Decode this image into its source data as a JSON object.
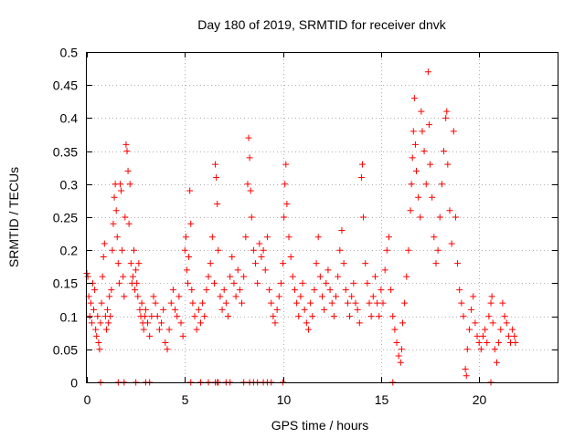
{
  "chart_data": {
    "type": "scatter",
    "title": "Day 180 of 2019, SRMTID for receiver dnvk",
    "xlabel": "GPS time / hours",
    "ylabel": "SRMTID / TECUs",
    "xlim": [
      0,
      24
    ],
    "ylim": [
      0,
      0.5
    ],
    "xticks": [
      0,
      5,
      10,
      15,
      20
    ],
    "yticks": [
      0,
      0.05,
      0.1,
      0.15,
      0.2,
      0.25,
      0.3,
      0.35,
      0.4,
      0.45,
      0.5
    ],
    "xtick_labels": [
      "0",
      "5",
      "10",
      "15",
      "20"
    ],
    "ytick_labels": [
      "0",
      "0.05",
      "0.1",
      "0.15",
      "0.2",
      "0.25",
      "0.3",
      "0.35",
      "0.4",
      "0.45",
      "0.5"
    ],
    "grid": true,
    "marker": "+",
    "color": "#ff0000",
    "series": [
      {
        "name": "SRMTID",
        "points": [
          [
            0.0,
            0.165
          ],
          [
            0.05,
            0.16
          ],
          [
            0.1,
            0.13
          ],
          [
            0.15,
            0.1
          ],
          [
            0.2,
            0.12
          ],
          [
            0.25,
            0.09
          ],
          [
            0.3,
            0.15
          ],
          [
            0.35,
            0.11
          ],
          [
            0.4,
            0.14
          ],
          [
            0.45,
            0.08
          ],
          [
            0.5,
            0.07
          ],
          [
            0.55,
            0.1
          ],
          [
            0.6,
            0.06
          ],
          [
            0.65,
            0.05
          ],
          [
            0.7,
            0.09
          ],
          [
            0.75,
            0.12
          ],
          [
            0.8,
            0.16
          ],
          [
            0.85,
            0.19
          ],
          [
            0.9,
            0.21
          ],
          [
            0.95,
            0.1
          ],
          [
            1.0,
            0.08
          ],
          [
            1.05,
            0.11
          ],
          [
            1.1,
            0.09
          ],
          [
            1.15,
            0.13
          ],
          [
            1.2,
            0.1
          ],
          [
            1.25,
            0.14
          ],
          [
            1.3,
            0.2
          ],
          [
            1.35,
            0.24
          ],
          [
            1.4,
            0.28
          ],
          [
            1.45,
            0.3
          ],
          [
            1.5,
            0.26
          ],
          [
            1.55,
            0.22
          ],
          [
            1.6,
            0.18
          ],
          [
            1.65,
            0.15
          ],
          [
            1.7,
            0.3
          ],
          [
            1.75,
            0.29
          ],
          [
            1.8,
            0.2
          ],
          [
            1.85,
            0.16
          ],
          [
            1.9,
            0.13
          ],
          [
            1.95,
            0.25
          ],
          [
            2.0,
            0.36
          ],
          [
            2.05,
            0.35
          ],
          [
            2.1,
            0.32
          ],
          [
            2.15,
            0.24
          ],
          [
            2.2,
            0.3
          ],
          [
            2.25,
            0.18
          ],
          [
            2.3,
            0.15
          ],
          [
            2.35,
            0.16
          ],
          [
            2.4,
            0.2
          ],
          [
            2.45,
            0.14
          ],
          [
            2.5,
            0.17
          ],
          [
            2.55,
            0.15
          ],
          [
            2.6,
            0.13
          ],
          [
            2.65,
            0.18
          ],
          [
            2.7,
            0.11
          ],
          [
            2.75,
            0.1
          ],
          [
            2.8,
            0.12
          ],
          [
            2.85,
            0.09
          ],
          [
            2.9,
            0.08
          ],
          [
            2.95,
            0.1
          ],
          [
            3.0,
            0.11
          ],
          [
            3.1,
            0.09
          ],
          [
            3.2,
            0.07
          ],
          [
            3.3,
            0.1
          ],
          [
            3.4,
            0.13
          ],
          [
            3.5,
            0.12
          ],
          [
            3.6,
            0.1
          ],
          [
            3.7,
            0.08
          ],
          [
            3.8,
            0.09
          ],
          [
            3.9,
            0.11
          ],
          [
            4.0,
            0.06
          ],
          [
            4.1,
            0.05
          ],
          [
            4.2,
            0.08
          ],
          [
            4.3,
            0.12
          ],
          [
            4.4,
            0.14
          ],
          [
            4.5,
            0.11
          ],
          [
            4.6,
            0.1
          ],
          [
            4.7,
            0.13
          ],
          [
            4.8,
            0.09
          ],
          [
            4.9,
            0.07
          ],
          [
            5.0,
            0.2
          ],
          [
            5.05,
            0.22
          ],
          [
            5.1,
            0.17
          ],
          [
            5.15,
            0.15
          ],
          [
            5.2,
            0.19
          ],
          [
            5.25,
            0.29
          ],
          [
            5.3,
            0.24
          ],
          [
            5.35,
            0.14
          ],
          [
            5.4,
            0.12
          ],
          [
            5.5,
            0.1
          ],
          [
            5.6,
            0.08
          ],
          [
            5.7,
            0.11
          ],
          [
            5.8,
            0.09
          ],
          [
            5.9,
            0.12
          ],
          [
            6.0,
            0.1
          ],
          [
            6.1,
            0.14
          ],
          [
            6.2,
            0.16
          ],
          [
            6.3,
            0.18
          ],
          [
            6.4,
            0.22
          ],
          [
            6.5,
            0.15
          ],
          [
            6.55,
            0.33
          ],
          [
            6.6,
            0.31
          ],
          [
            6.65,
            0.27
          ],
          [
            6.7,
            0.2
          ],
          [
            6.8,
            0.13
          ],
          [
            6.9,
            0.11
          ],
          [
            7.0,
            0.14
          ],
          [
            7.1,
            0.12
          ],
          [
            7.2,
            0.1
          ],
          [
            7.3,
            0.16
          ],
          [
            7.4,
            0.19
          ],
          [
            7.5,
            0.15
          ],
          [
            7.6,
            0.13
          ],
          [
            7.7,
            0.17
          ],
          [
            7.8,
            0.14
          ],
          [
            7.9,
            0.12
          ],
          [
            8.0,
            0.16
          ],
          [
            8.1,
            0.22
          ],
          [
            8.2,
            0.3
          ],
          [
            8.25,
            0.37
          ],
          [
            8.3,
            0.34
          ],
          [
            8.35,
            0.29
          ],
          [
            8.4,
            0.25
          ],
          [
            8.5,
            0.2
          ],
          [
            8.6,
            0.18
          ],
          [
            8.7,
            0.15
          ],
          [
            8.8,
            0.21
          ],
          [
            8.9,
            0.19
          ],
          [
            9.0,
            0.2
          ],
          [
            9.1,
            0.17
          ],
          [
            9.2,
            0.22
          ],
          [
            9.3,
            0.14
          ],
          [
            9.4,
            0.12
          ],
          [
            9.5,
            0.1
          ],
          [
            9.6,
            0.09
          ],
          [
            9.7,
            0.11
          ],
          [
            9.8,
            0.13
          ],
          [
            9.9,
            0.15
          ],
          [
            10.0,
            0.18
          ],
          [
            10.05,
            0.25
          ],
          [
            10.1,
            0.3
          ],
          [
            10.15,
            0.33
          ],
          [
            10.2,
            0.27
          ],
          [
            10.3,
            0.22
          ],
          [
            10.4,
            0.19
          ],
          [
            10.5,
            0.16
          ],
          [
            10.6,
            0.14
          ],
          [
            10.7,
            0.12
          ],
          [
            10.8,
            0.1
          ],
          [
            10.9,
            0.13
          ],
          [
            11.0,
            0.15
          ],
          [
            11.1,
            0.11
          ],
          [
            11.2,
            0.09
          ],
          [
            11.3,
            0.08
          ],
          [
            11.4,
            0.12
          ],
          [
            11.5,
            0.1
          ],
          [
            11.6,
            0.14
          ],
          [
            11.7,
            0.18
          ],
          [
            11.8,
            0.22
          ],
          [
            11.9,
            0.16
          ],
          [
            12.0,
            0.13
          ],
          [
            12.1,
            0.11
          ],
          [
            12.2,
            0.15
          ],
          [
            12.3,
            0.17
          ],
          [
            12.4,
            0.14
          ],
          [
            12.5,
            0.12
          ],
          [
            12.6,
            0.1
          ],
          [
            12.7,
            0.13
          ],
          [
            12.8,
            0.16
          ],
          [
            12.9,
            0.2
          ],
          [
            13.0,
            0.23
          ],
          [
            13.1,
            0.18
          ],
          [
            13.2,
            0.14
          ],
          [
            13.3,
            0.12
          ],
          [
            13.4,
            0.1
          ],
          [
            13.5,
            0.13
          ],
          [
            13.6,
            0.15
          ],
          [
            13.7,
            0.12
          ],
          [
            13.8,
            0.11
          ],
          [
            13.9,
            0.09
          ],
          [
            14.0,
            0.31
          ],
          [
            14.05,
            0.33
          ],
          [
            14.1,
            0.25
          ],
          [
            14.2,
            0.18
          ],
          [
            14.3,
            0.15
          ],
          [
            14.4,
            0.12
          ],
          [
            14.5,
            0.1
          ],
          [
            14.6,
            0.13
          ],
          [
            14.7,
            0.16
          ],
          [
            14.8,
            0.12
          ],
          [
            14.9,
            0.1
          ],
          [
            15.0,
            0.14
          ],
          [
            15.1,
            0.12
          ],
          [
            15.2,
            0.17
          ],
          [
            15.3,
            0.2
          ],
          [
            15.4,
            0.22
          ],
          [
            15.5,
            0.14
          ],
          [
            15.6,
            0.1
          ],
          [
            15.7,
            0.08
          ],
          [
            15.8,
            0.06
          ],
          [
            15.9,
            0.04
          ],
          [
            16.0,
            0.03
          ],
          [
            16.05,
            0.05
          ],
          [
            16.1,
            0.09
          ],
          [
            16.2,
            0.12
          ],
          [
            16.3,
            0.16
          ],
          [
            16.4,
            0.2
          ],
          [
            16.5,
            0.26
          ],
          [
            16.55,
            0.3
          ],
          [
            16.6,
            0.34
          ],
          [
            16.65,
            0.38
          ],
          [
            16.7,
            0.43
          ],
          [
            16.75,
            0.36
          ],
          [
            16.8,
            0.32
          ],
          [
            16.9,
            0.28
          ],
          [
            17.0,
            0.25
          ],
          [
            17.05,
            0.41
          ],
          [
            17.1,
            0.38
          ],
          [
            17.2,
            0.35
          ],
          [
            17.3,
            0.3
          ],
          [
            17.4,
            0.47
          ],
          [
            17.45,
            0.39
          ],
          [
            17.5,
            0.33
          ],
          [
            17.6,
            0.28
          ],
          [
            17.7,
            0.22
          ],
          [
            17.8,
            0.18
          ],
          [
            17.9,
            0.2
          ],
          [
            18.0,
            0.25
          ],
          [
            18.1,
            0.3
          ],
          [
            18.2,
            0.35
          ],
          [
            18.3,
            0.4
          ],
          [
            18.35,
            0.41
          ],
          [
            18.4,
            0.33
          ],
          [
            18.5,
            0.26
          ],
          [
            18.6,
            0.21
          ],
          [
            18.7,
            0.38
          ],
          [
            18.8,
            0.25
          ],
          [
            18.9,
            0.18
          ],
          [
            19.0,
            0.14
          ],
          [
            19.1,
            0.12
          ],
          [
            19.2,
            0.1
          ],
          [
            19.3,
            0.02
          ],
          [
            19.35,
            0.01
          ],
          [
            19.4,
            0.05
          ],
          [
            19.5,
            0.08
          ],
          [
            19.6,
            0.11
          ],
          [
            19.7,
            0.13
          ],
          [
            19.8,
            0.09
          ],
          [
            19.9,
            0.07
          ],
          [
            20.0,
            0.06
          ],
          [
            20.1,
            0.05
          ],
          [
            20.2,
            0.07
          ],
          [
            20.3,
            0.08
          ],
          [
            20.4,
            0.06
          ],
          [
            20.5,
            0.1
          ],
          [
            20.6,
            0.12
          ],
          [
            20.65,
            0.13
          ],
          [
            20.7,
            0.09
          ],
          [
            20.8,
            0.05
          ],
          [
            20.9,
            0.03
          ],
          [
            21.0,
            0.06
          ],
          [
            21.1,
            0.08
          ],
          [
            21.2,
            0.12
          ],
          [
            21.3,
            0.1
          ],
          [
            21.4,
            0.09
          ],
          [
            21.5,
            0.07
          ],
          [
            21.6,
            0.06
          ],
          [
            21.7,
            0.08
          ],
          [
            21.8,
            0.07
          ],
          [
            21.85,
            0.06
          ],
          [
            0.7,
            0.0
          ],
          [
            1.6,
            0.0
          ],
          [
            1.9,
            0.0
          ],
          [
            2.5,
            0.0
          ],
          [
            3.0,
            0.0
          ],
          [
            3.2,
            0.0
          ],
          [
            5.3,
            0.0
          ],
          [
            5.8,
            0.0
          ],
          [
            6.2,
            0.0
          ],
          [
            6.55,
            0.0
          ],
          [
            6.65,
            0.0
          ],
          [
            6.7,
            0.0
          ],
          [
            7.1,
            0.0
          ],
          [
            7.3,
            0.0
          ],
          [
            8.0,
            0.0
          ],
          [
            8.3,
            0.0
          ],
          [
            8.5,
            0.0
          ],
          [
            8.7,
            0.0
          ],
          [
            9.0,
            0.0
          ],
          [
            9.2,
            0.0
          ],
          [
            9.4,
            0.0
          ],
          [
            10.0,
            0.0
          ],
          [
            15.6,
            0.0
          ],
          [
            20.6,
            0.0
          ]
        ]
      }
    ]
  }
}
